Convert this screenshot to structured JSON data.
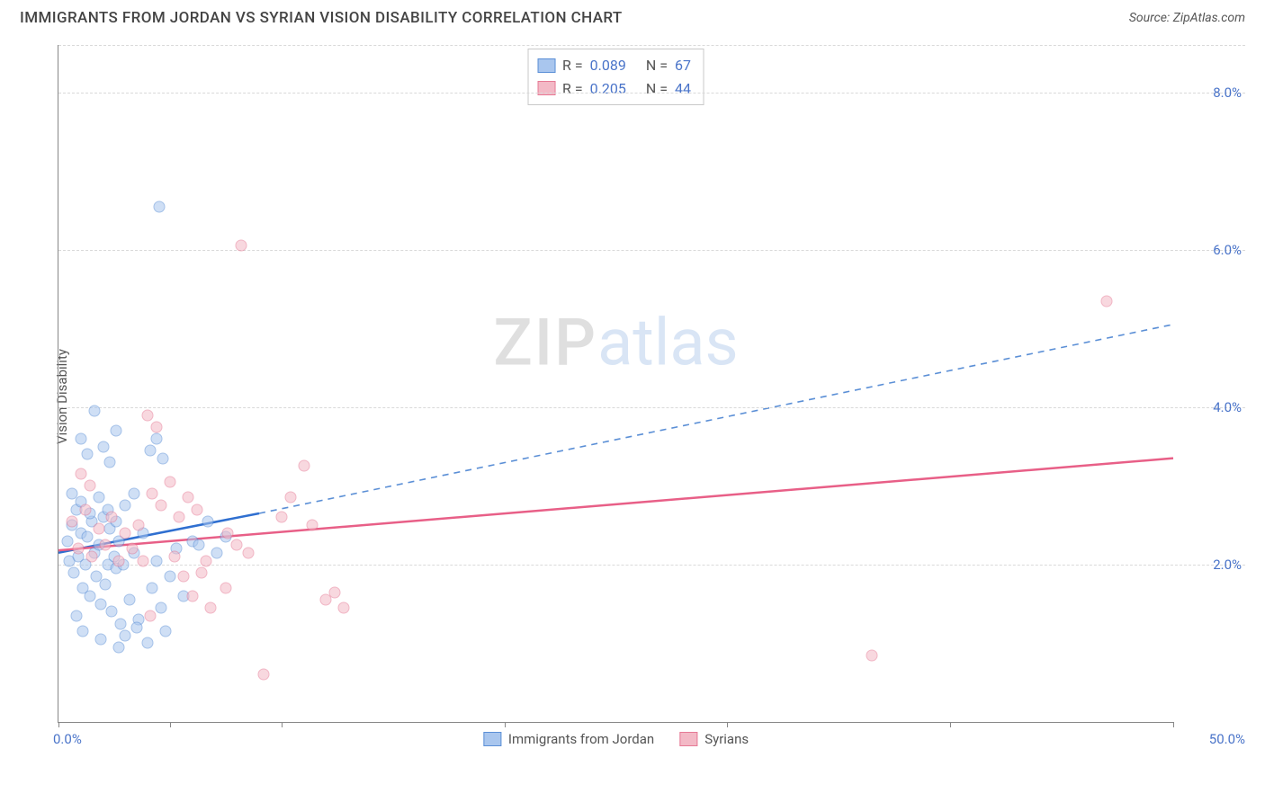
{
  "header": {
    "title": "IMMIGRANTS FROM JORDAN VS SYRIAN VISION DISABILITY CORRELATION CHART",
    "source_prefix": "Source: ",
    "source_name": "ZipAtlas.com"
  },
  "watermark": {
    "zip": "ZIP",
    "atlas": "atlas"
  },
  "chart": {
    "type": "scatter",
    "ylabel": "Vision Disability",
    "background_color": "#ffffff",
    "grid_color": "#d9d9d9",
    "axis_color": "#888888",
    "value_color": "#4a74c9",
    "label_color": "#555555",
    "title_fontsize": 17,
    "label_fontsize": 15,
    "xlim": [
      0,
      50
    ],
    "ylim": [
      0,
      8.6
    ],
    "yticks": [
      2.0,
      4.0,
      6.0,
      8.0
    ],
    "ytick_labels": [
      "2.0%",
      "4.0%",
      "6.0%",
      "8.0%"
    ],
    "xticks": [
      0,
      5,
      10,
      20,
      30,
      40,
      50
    ],
    "xlabel_start": "0.0%",
    "xlabel_end": "50.0%",
    "marker_size": 13,
    "marker_opacity": 0.55,
    "series": [
      {
        "key": "jordan",
        "label": "Immigrants from Jordan",
        "fill": "#a9c6ee",
        "stroke": "#5b8fd6",
        "trend_color": "#2f6fd0",
        "trend_dash_color": "#5b8fd6",
        "r_label": "R =",
        "r_value": "0.089",
        "n_label": "N =",
        "n_value": "67",
        "trend": {
          "x1": 0,
          "y1": 2.15,
          "x2_solid": 9,
          "y2_solid": 2.65,
          "x2": 50,
          "y2": 5.05
        },
        "points": [
          [
            0.4,
            2.3
          ],
          [
            0.5,
            2.05
          ],
          [
            0.6,
            2.5
          ],
          [
            0.7,
            1.9
          ],
          [
            0.8,
            2.7
          ],
          [
            0.9,
            2.1
          ],
          [
            1.0,
            2.4
          ],
          [
            1.1,
            1.7
          ],
          [
            1.2,
            2.0
          ],
          [
            1.3,
            2.35
          ],
          [
            1.4,
            1.6
          ],
          [
            1.5,
            2.55
          ],
          [
            1.6,
            2.15
          ],
          [
            1.7,
            1.85
          ],
          [
            1.8,
            2.25
          ],
          [
            1.9,
            1.5
          ],
          [
            2.0,
            2.6
          ],
          [
            2.1,
            1.75
          ],
          [
            2.2,
            2.0
          ],
          [
            2.3,
            2.45
          ],
          [
            2.4,
            1.4
          ],
          [
            2.5,
            2.1
          ],
          [
            2.6,
            1.95
          ],
          [
            2.7,
            2.3
          ],
          [
            2.8,
            1.25
          ],
          [
            2.9,
            2.0
          ],
          [
            3.0,
            1.1
          ],
          [
            3.2,
            1.55
          ],
          [
            3.4,
            2.15
          ],
          [
            3.6,
            1.3
          ],
          [
            3.8,
            2.4
          ],
          [
            4.0,
            1.0
          ],
          [
            4.2,
            1.7
          ],
          [
            4.4,
            2.05
          ],
          [
            4.6,
            1.45
          ],
          [
            4.8,
            1.15
          ],
          [
            5.0,
            1.85
          ],
          [
            5.3,
            2.2
          ],
          [
            5.6,
            1.6
          ],
          [
            6.0,
            2.3
          ],
          [
            1.0,
            3.6
          ],
          [
            1.3,
            3.4
          ],
          [
            1.6,
            3.95
          ],
          [
            2.0,
            3.5
          ],
          [
            2.3,
            3.3
          ],
          [
            2.6,
            3.7
          ],
          [
            4.1,
            3.45
          ],
          [
            4.4,
            3.6
          ],
          [
            4.7,
            3.35
          ],
          [
            0.6,
            2.9
          ],
          [
            1.0,
            2.8
          ],
          [
            1.4,
            2.65
          ],
          [
            1.8,
            2.85
          ],
          [
            2.2,
            2.7
          ],
          [
            2.6,
            2.55
          ],
          [
            3.0,
            2.75
          ],
          [
            3.4,
            2.9
          ],
          [
            4.5,
            6.55
          ],
          [
            6.3,
            2.25
          ],
          [
            6.7,
            2.55
          ],
          [
            7.1,
            2.15
          ],
          [
            7.5,
            2.35
          ],
          [
            0.8,
            1.35
          ],
          [
            1.1,
            1.15
          ],
          [
            1.9,
            1.05
          ],
          [
            2.7,
            0.95
          ],
          [
            3.5,
            1.2
          ]
        ]
      },
      {
        "key": "syrians",
        "label": "Syrians",
        "fill": "#f3b9c6",
        "stroke": "#e67a95",
        "trend_color": "#e85f87",
        "r_label": "R =",
        "r_value": "0.205",
        "n_label": "N =",
        "n_value": "44",
        "trend": {
          "x1": 0,
          "y1": 2.18,
          "x2_solid": 50,
          "y2_solid": 3.35,
          "x2": 50,
          "y2": 3.35
        },
        "points": [
          [
            0.6,
            2.55
          ],
          [
            0.9,
            2.2
          ],
          [
            1.2,
            2.7
          ],
          [
            1.5,
            2.1
          ],
          [
            1.8,
            2.45
          ],
          [
            2.1,
            2.25
          ],
          [
            2.4,
            2.6
          ],
          [
            2.7,
            2.05
          ],
          [
            3.0,
            2.4
          ],
          [
            3.3,
            2.2
          ],
          [
            3.6,
            2.5
          ],
          [
            4.2,
            2.9
          ],
          [
            4.6,
            2.75
          ],
          [
            5.0,
            3.05
          ],
          [
            5.4,
            2.6
          ],
          [
            5.8,
            2.85
          ],
          [
            1.0,
            3.15
          ],
          [
            1.4,
            3.0
          ],
          [
            4.0,
            3.9
          ],
          [
            4.4,
            3.75
          ],
          [
            5.2,
            2.1
          ],
          [
            5.6,
            1.85
          ],
          [
            6.0,
            1.6
          ],
          [
            6.4,
            1.9
          ],
          [
            6.8,
            1.45
          ],
          [
            7.5,
            1.7
          ],
          [
            8.0,
            2.25
          ],
          [
            8.5,
            2.15
          ],
          [
            9.2,
            0.6
          ],
          [
            10.0,
            2.6
          ],
          [
            10.4,
            2.85
          ],
          [
            11.0,
            3.25
          ],
          [
            11.4,
            2.5
          ],
          [
            12.0,
            1.55
          ],
          [
            12.4,
            1.65
          ],
          [
            12.8,
            1.45
          ],
          [
            8.2,
            6.05
          ],
          [
            7.6,
            2.4
          ],
          [
            3.8,
            2.05
          ],
          [
            4.1,
            1.35
          ],
          [
            6.2,
            2.7
          ],
          [
            36.5,
            0.85
          ],
          [
            47.0,
            5.35
          ],
          [
            6.6,
            2.05
          ]
        ]
      }
    ],
    "bottom_legend": [
      {
        "series": "jordan"
      },
      {
        "series": "syrians"
      }
    ]
  }
}
